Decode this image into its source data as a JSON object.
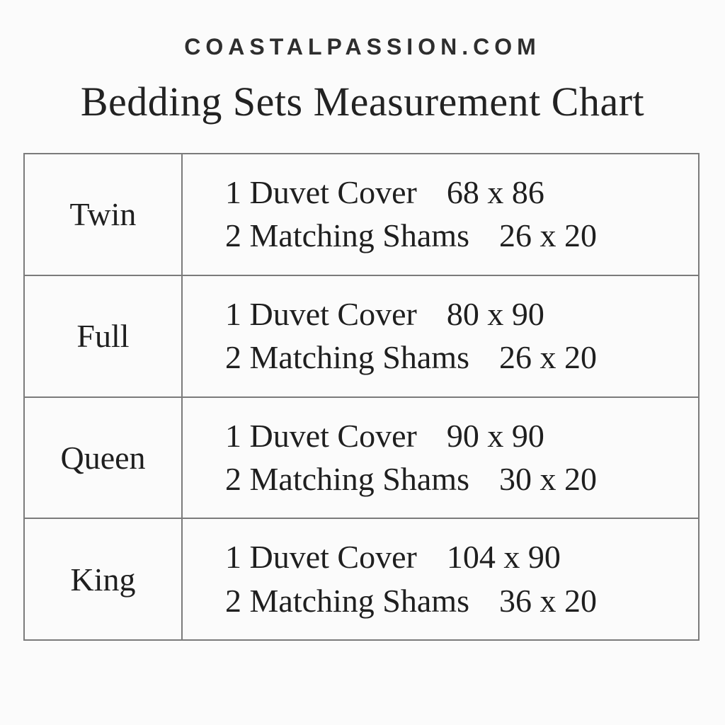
{
  "brand": "COASTALPASSION.COM",
  "title": "Bedding Sets Measurement Chart",
  "colors": {
    "background": "#fbfbfb",
    "text": "#1f1f1f",
    "border": "#7b7b7b"
  },
  "table": {
    "rows": [
      {
        "size": "Twin",
        "lines": [
          {
            "item": "1 Duvet Cover",
            "dims": "68 x 86"
          },
          {
            "item": "2 Matching Shams",
            "dims": "26 x 20"
          }
        ]
      },
      {
        "size": "Full",
        "lines": [
          {
            "item": "1 Duvet Cover",
            "dims": "80 x 90"
          },
          {
            "item": "2 Matching Shams",
            "dims": "26 x 20"
          }
        ]
      },
      {
        "size": "Queen",
        "lines": [
          {
            "item": "1 Duvet Cover",
            "dims": "90 x 90"
          },
          {
            "item": "2 Matching Shams",
            "dims": "30 x 20"
          }
        ]
      },
      {
        "size": "King",
        "lines": [
          {
            "item": "1 Duvet Cover",
            "dims": "104 x 90"
          },
          {
            "item": "2 Matching Shams",
            "dims": "36 x 20"
          }
        ]
      }
    ]
  },
  "chart_data": {
    "type": "table",
    "title": "Bedding Sets Measurement Chart",
    "brand": "COASTALPASSION.COM",
    "rows": [
      {
        "bed_size": "Twin",
        "duvet_cover_qty": 1,
        "duvet_cover_size": "68 x 86",
        "matching_shams_qty": 2,
        "matching_shams_size": "26 x 20"
      },
      {
        "bed_size": "Full",
        "duvet_cover_qty": 1,
        "duvet_cover_size": "80 x 90",
        "matching_shams_qty": 2,
        "matching_shams_size": "26 x 20"
      },
      {
        "bed_size": "Queen",
        "duvet_cover_qty": 1,
        "duvet_cover_size": "90 x 90",
        "matching_shams_qty": 2,
        "matching_shams_size": "30 x 20"
      },
      {
        "bed_size": "King",
        "duvet_cover_qty": 1,
        "duvet_cover_size": "104 x 90",
        "matching_shams_qty": 2,
        "matching_shams_size": "36 x 20"
      }
    ]
  }
}
